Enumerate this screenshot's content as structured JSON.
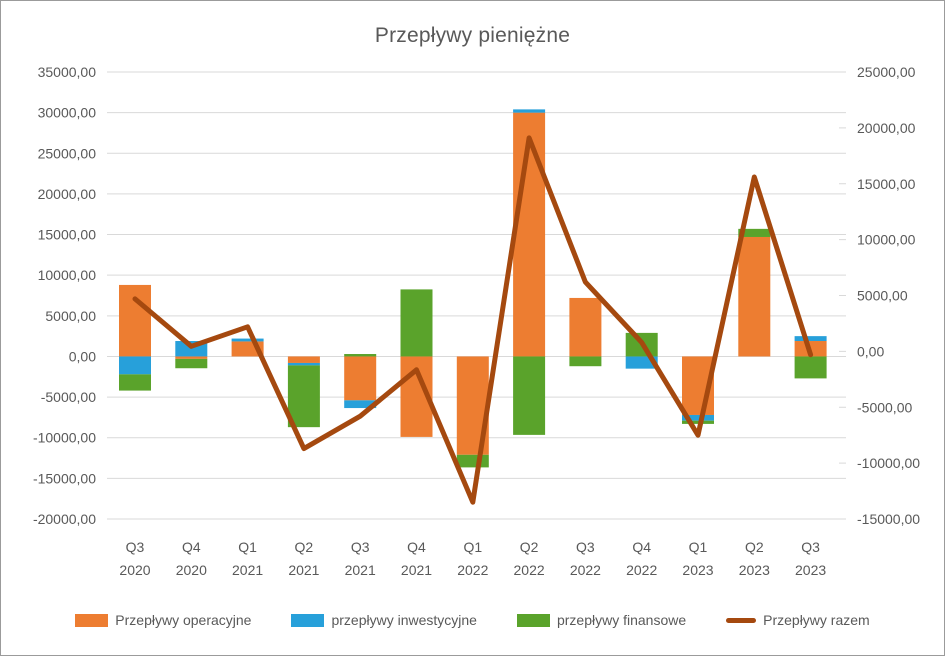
{
  "chart_data": {
    "type": "bar",
    "subtype": "stacked-bars-with-line-overlay",
    "title": "Przepływy pieniężne",
    "categories": [
      "Q3 2020",
      "Q4 2020",
      "Q1 2021",
      "Q2 2021",
      "Q3 2021",
      "Q4 2021",
      "Q1 2022",
      "Q2 2022",
      "Q3 2022",
      "Q4 2022",
      "Q1 2023",
      "Q2 2023",
      "Q3 2023"
    ],
    "series": [
      {
        "name": "Przepływy operacyjne",
        "type": "bar",
        "axis": "left",
        "color": "#ED7D31",
        "values": [
          8800,
          -300,
          1850,
          -800,
          -5400,
          -9900,
          -12100,
          30000,
          7200,
          0,
          -7200,
          14700,
          1900
        ]
      },
      {
        "name": "przepływy inwestycyjne",
        "type": "bar",
        "axis": "left",
        "color": "#27A0DA",
        "values": [
          -2200,
          1900,
          350,
          -300,
          -950,
          0,
          0,
          400,
          0,
          -1500,
          -700,
          0,
          600
        ]
      },
      {
        "name": "przepływy finansowe",
        "type": "bar",
        "axis": "left",
        "color": "#5AA32B",
        "values": [
          -2000,
          -1150,
          0,
          -7600,
          300,
          8250,
          -1550,
          -9650,
          -1200,
          2900,
          -400,
          1000,
          -2700
        ]
      },
      {
        "name": "Przepływy razem",
        "type": "line",
        "axis": "right",
        "color": "#A5490F",
        "values": [
          4700,
          450,
          2200,
          -8700,
          -5800,
          -1650,
          -13500,
          19100,
          6200,
          800,
          -7500,
          15600,
          -300
        ]
      }
    ],
    "left_axis": {
      "min": -20000,
      "max": 35000,
      "step": 5000,
      "tick_labels": [
        "35000,00",
        "30000,00",
        "25000,00",
        "20000,00",
        "15000,00",
        "10000,00",
        "5000,00",
        "0,00",
        "-5000,00",
        "-10000,00",
        "-15000,00",
        "-20000,00"
      ]
    },
    "right_axis": {
      "min": -15000,
      "max": 25000,
      "step": 5000,
      "tick_labels": [
        "25000,00",
        "20000,00",
        "15000,00",
        "10000,00",
        "5000,00",
        "0,00",
        "-5000,00",
        "-10000,00",
        "-15000,00"
      ]
    },
    "grid": true,
    "legend_position": "bottom",
    "colors": {
      "gridline": "#D9D9D9",
      "text": "#595959",
      "background": "#FFFFFF",
      "border": "#9B9B9B"
    }
  }
}
